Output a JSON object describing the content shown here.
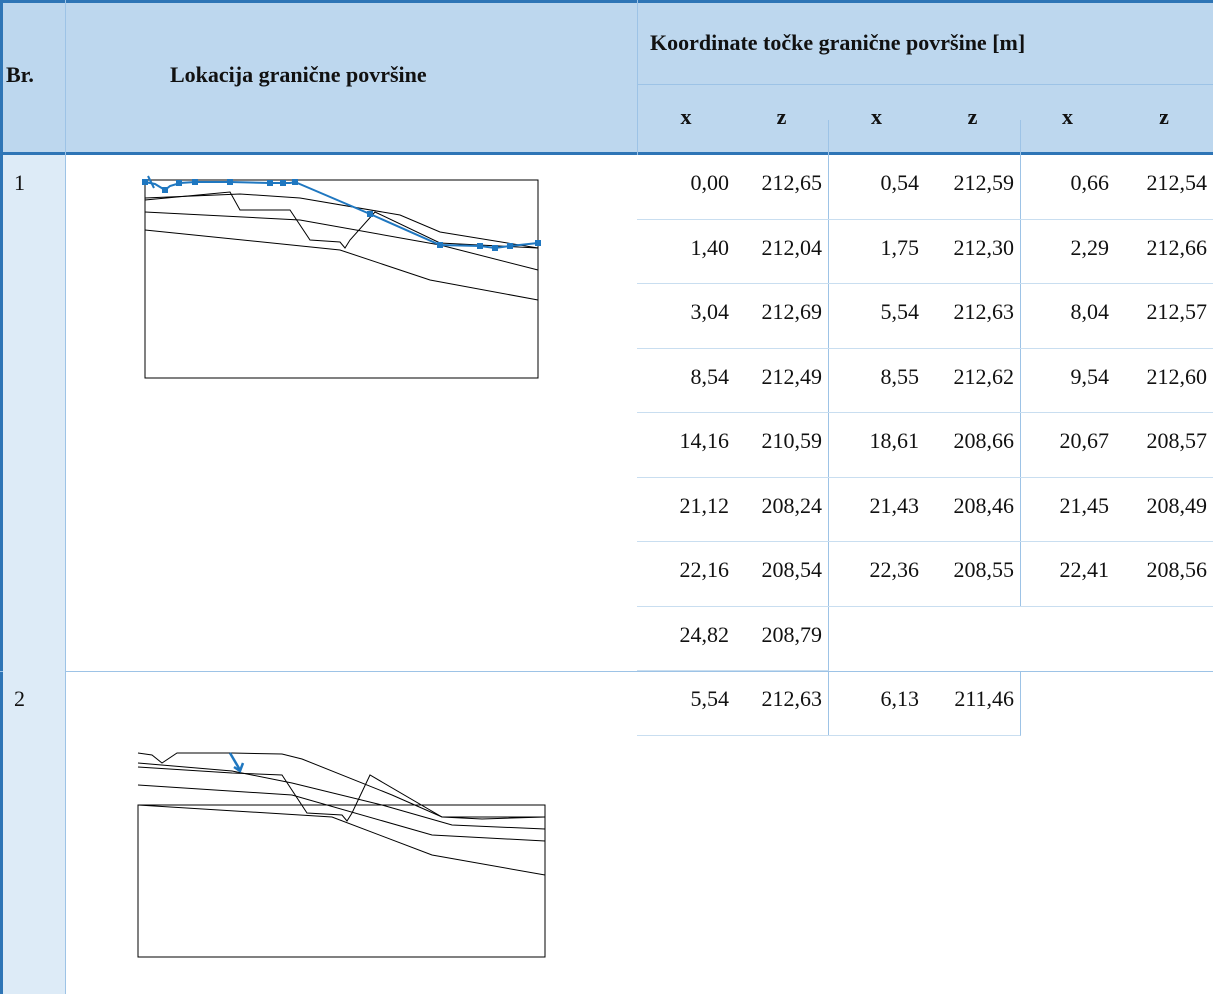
{
  "header": {
    "br": "Br.",
    "location": "Lokacija granične površine",
    "coordinates": "Koordinate točke granične površine [m]",
    "axes": [
      "x",
      "z",
      "x",
      "z",
      "x",
      "z"
    ]
  },
  "table": {
    "rows": [
      {
        "br": "1",
        "points": [
          [
            "0,00",
            "212,65"
          ],
          [
            "0,54",
            "212,59"
          ],
          [
            "0,66",
            "212,54"
          ],
          [
            "1,40",
            "212,04"
          ],
          [
            "1,75",
            "212,30"
          ],
          [
            "2,29",
            "212,66"
          ],
          [
            "3,04",
            "212,69"
          ],
          [
            "5,54",
            "212,63"
          ],
          [
            "8,04",
            "212,57"
          ],
          [
            "8,54",
            "212,49"
          ],
          [
            "8,55",
            "212,62"
          ],
          [
            "9,54",
            "212,60"
          ],
          [
            "14,16",
            "210,59"
          ],
          [
            "18,61",
            "208,66"
          ],
          [
            "20,67",
            "208,57"
          ],
          [
            "21,12",
            "208,24"
          ],
          [
            "21,43",
            "208,46"
          ],
          [
            "21,45",
            "208,49"
          ],
          [
            "22,16",
            "208,54"
          ],
          [
            "22,36",
            "208,55"
          ],
          [
            "22,41",
            "208,56"
          ],
          [
            "24,82",
            "208,79"
          ]
        ]
      },
      {
        "br": "2",
        "points": [
          [
            "5,54",
            "212,63"
          ],
          [
            "6,13",
            "211,46"
          ]
        ]
      }
    ]
  }
}
